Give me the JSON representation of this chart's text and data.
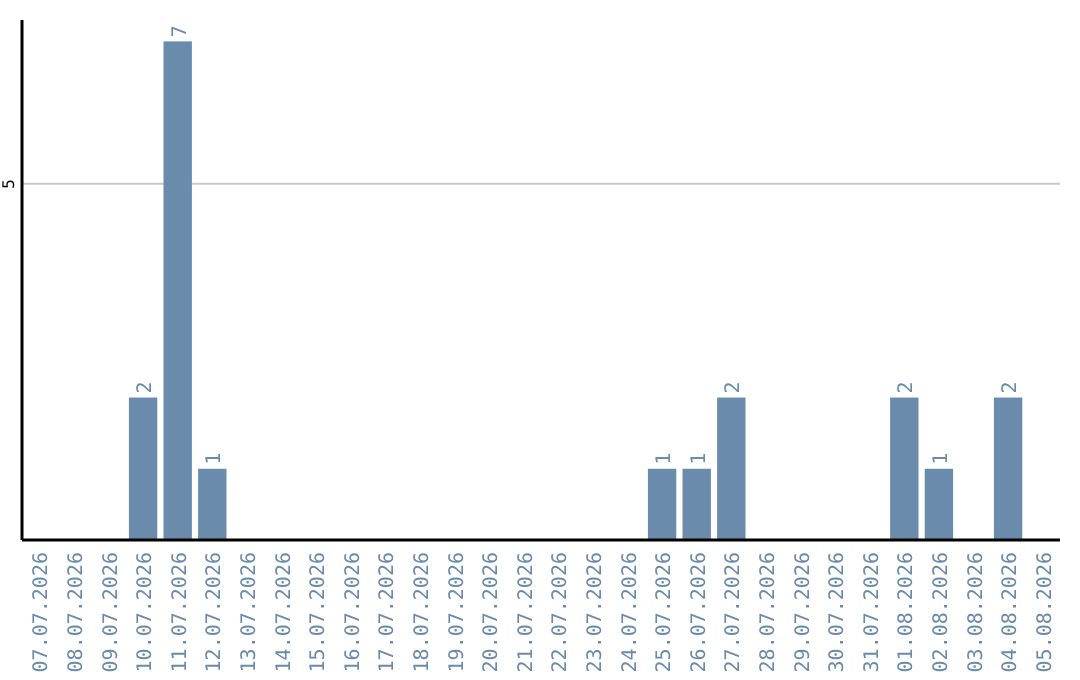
{
  "chart_data": {
    "type": "bar",
    "categories": [
      "07.07.2026",
      "08.07.2026",
      "09.07.2026",
      "10.07.2026",
      "11.07.2026",
      "12.07.2026",
      "13.07.2026",
      "14.07.2026",
      "15.07.2026",
      "16.07.2026",
      "17.07.2026",
      "18.07.2026",
      "19.07.2026",
      "20.07.2026",
      "21.07.2026",
      "22.07.2026",
      "23.07.2026",
      "24.07.2026",
      "25.07.2026",
      "26.07.2026",
      "27.07.2026",
      "28.07.2026",
      "29.07.2026",
      "30.07.2026",
      "31.07.2026",
      "01.08.2026",
      "02.08.2026",
      "03.08.2026",
      "04.08.2026",
      "05.08.2026"
    ],
    "values": [
      0,
      0,
      0,
      2,
      7,
      1,
      0,
      0,
      0,
      0,
      0,
      0,
      0,
      0,
      0,
      0,
      0,
      0,
      1,
      1,
      2,
      0,
      0,
      0,
      0,
      2,
      1,
      0,
      2,
      0
    ],
    "value_labels": [
      null,
      null,
      null,
      "2",
      "7",
      "1",
      null,
      null,
      null,
      null,
      null,
      null,
      null,
      null,
      null,
      null,
      null,
      null,
      "1",
      "1",
      "2",
      null,
      null,
      null,
      null,
      "2",
      "1",
      null,
      "2",
      null
    ],
    "color": "#6a8bab",
    "ylim": [
      0,
      7.3
    ],
    "yticks": [
      5
    ],
    "grid": "y"
  }
}
